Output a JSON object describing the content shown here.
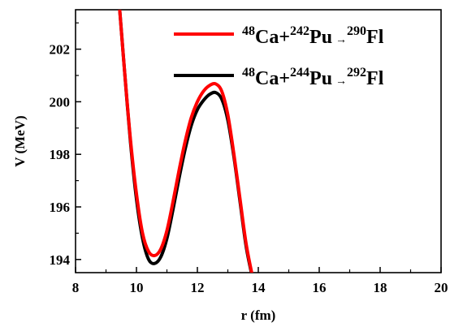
{
  "chart_data": {
    "type": "line",
    "xlabel": "r (fm)",
    "ylabel": "V (MeV)",
    "xlim": [
      8,
      20
    ],
    "ylim": [
      193.5,
      203.5
    ],
    "xticks": [
      8,
      10,
      12,
      14,
      16,
      18,
      20
    ],
    "yticks": [
      194,
      196,
      198,
      200,
      202
    ],
    "xtick_labels": [
      "8",
      "10",
      "12",
      "14",
      "16",
      "18",
      "20"
    ],
    "ytick_labels": [
      "194",
      "196",
      "198",
      "200",
      "202"
    ],
    "grid": false,
    "legend_position": "top-right",
    "series": [
      {
        "name": "48Ca+242Pu → 290Fl",
        "legend": {
          "a1": "48",
          "e1": "Ca",
          "plus": "+",
          "a2": "242",
          "e2": "Pu",
          "arrow": "→",
          "a3": "290",
          "e3": "Fl"
        },
        "color": "#ff0000",
        "points": [
          [
            9.45,
            203.5
          ],
          [
            9.6,
            201.3
          ],
          [
            9.8,
            198.6
          ],
          [
            10.0,
            196.5
          ],
          [
            10.2,
            195.0
          ],
          [
            10.4,
            194.3
          ],
          [
            10.6,
            194.15
          ],
          [
            10.8,
            194.4
          ],
          [
            11.0,
            195.1
          ],
          [
            11.2,
            196.2
          ],
          [
            11.4,
            197.4
          ],
          [
            11.6,
            198.5
          ],
          [
            11.8,
            199.4
          ],
          [
            12.0,
            200.0
          ],
          [
            12.2,
            200.4
          ],
          [
            12.4,
            200.62
          ],
          [
            12.6,
            200.68
          ],
          [
            12.8,
            200.4
          ],
          [
            13.0,
            199.5
          ],
          [
            13.2,
            198.0
          ],
          [
            13.4,
            196.3
          ],
          [
            13.6,
            194.6
          ],
          [
            13.8,
            193.4
          ]
        ]
      },
      {
        "name": "48Ca+244Pu → 292Fl",
        "legend": {
          "a1": "48",
          "e1": "Ca",
          "plus": "+",
          "a2": "244",
          "e2": "Pu",
          "arrow": "→",
          "a3": "292",
          "e3": "Fl"
        },
        "color": "#000000",
        "points": [
          [
            9.45,
            203.5
          ],
          [
            9.6,
            201.3
          ],
          [
            9.8,
            198.5
          ],
          [
            10.0,
            196.3
          ],
          [
            10.2,
            194.8
          ],
          [
            10.4,
            194.0
          ],
          [
            10.6,
            193.85
          ],
          [
            10.8,
            194.1
          ],
          [
            11.0,
            194.8
          ],
          [
            11.2,
            195.9
          ],
          [
            11.4,
            197.1
          ],
          [
            11.6,
            198.2
          ],
          [
            11.8,
            199.1
          ],
          [
            12.0,
            199.7
          ],
          [
            12.2,
            200.05
          ],
          [
            12.4,
            200.28
          ],
          [
            12.6,
            200.35
          ],
          [
            12.8,
            200.1
          ],
          [
            13.0,
            199.3
          ],
          [
            13.2,
            197.9
          ],
          [
            13.4,
            196.2
          ],
          [
            13.6,
            194.5
          ],
          [
            13.8,
            193.35
          ]
        ]
      }
    ]
  }
}
